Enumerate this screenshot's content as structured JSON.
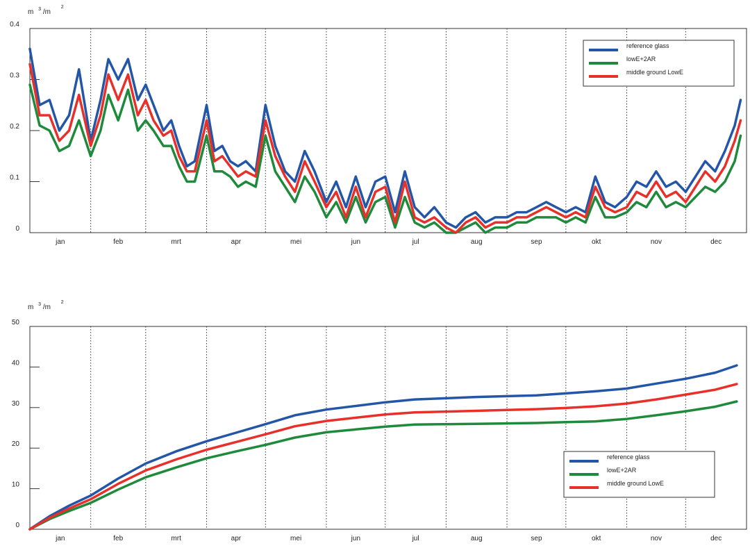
{
  "colors": {
    "reference_glass": "#2356a6",
    "lowE_2AR": "#1f8a3c",
    "middle_ground": "#e8302a",
    "axis": "#333333",
    "grid": "#333333"
  },
  "chart_data": [
    {
      "type": "line",
      "unit_base": "m",
      "unit_sup1": "3",
      "unit_mid": "/m",
      "unit_sup2": "2",
      "ylim": [
        0,
        0.4
      ],
      "yticks": [
        {
          "value": 0,
          "label": "0"
        },
        {
          "value": 0.1,
          "label": "0.1"
        },
        {
          "value": 0.2,
          "label": "0.2"
        },
        {
          "value": 0.3,
          "label": "0.3"
        },
        {
          "value": 0.4,
          "label": "0.4"
        }
      ],
      "xlim": [
        0,
        365
      ],
      "months": [
        "jan",
        "feb",
        "mrt",
        "apr",
        "mei",
        "jun",
        "jul",
        "aug",
        "sep",
        "okt",
        "nov",
        "dec"
      ],
      "month_boundaries": [
        31,
        59,
        90,
        120,
        151,
        181,
        212,
        243,
        273,
        304,
        334
      ],
      "grid": "vertical dotted at month boundaries",
      "legend_position": "top-right",
      "series": [
        {
          "name": "reference glass",
          "color_key": "reference_glass",
          "x": [
            0,
            5,
            10,
            15,
            20,
            25,
            31,
            36,
            40,
            45,
            50,
            55,
            59,
            63,
            68,
            72,
            76,
            80,
            84,
            90,
            94,
            98,
            102,
            106,
            110,
            115,
            120,
            125,
            130,
            135,
            140,
            145,
            151,
            156,
            161,
            166,
            171,
            176,
            181,
            186,
            191,
            196,
            201,
            206,
            212,
            217,
            222,
            227,
            232,
            237,
            243,
            248,
            253,
            258,
            263,
            268,
            273,
            278,
            283,
            288,
            293,
            298,
            304,
            309,
            314,
            319,
            324,
            329,
            334,
            339,
            344,
            349,
            354,
            359,
            362
          ],
          "values": [
            0.36,
            0.25,
            0.26,
            0.2,
            0.23,
            0.32,
            0.18,
            0.26,
            0.34,
            0.3,
            0.34,
            0.26,
            0.29,
            0.25,
            0.2,
            0.22,
            0.17,
            0.13,
            0.14,
            0.25,
            0.16,
            0.17,
            0.14,
            0.13,
            0.14,
            0.12,
            0.25,
            0.17,
            0.12,
            0.1,
            0.16,
            0.12,
            0.06,
            0.1,
            0.05,
            0.11,
            0.05,
            0.1,
            0.11,
            0.04,
            0.12,
            0.05,
            0.03,
            0.05,
            0.02,
            0.01,
            0.03,
            0.04,
            0.02,
            0.03,
            0.03,
            0.04,
            0.04,
            0.05,
            0.06,
            0.05,
            0.04,
            0.05,
            0.04,
            0.11,
            0.06,
            0.05,
            0.07,
            0.1,
            0.09,
            0.12,
            0.09,
            0.1,
            0.08,
            0.11,
            0.14,
            0.12,
            0.16,
            0.21,
            0.26
          ]
        },
        {
          "name": "lowE+2AR",
          "color_key": "lowE_2AR",
          "x": [
            0,
            5,
            10,
            15,
            20,
            25,
            31,
            36,
            40,
            45,
            50,
            55,
            59,
            63,
            68,
            72,
            76,
            80,
            84,
            90,
            94,
            98,
            102,
            106,
            110,
            115,
            120,
            125,
            130,
            135,
            140,
            145,
            151,
            156,
            161,
            166,
            171,
            176,
            181,
            186,
            191,
            196,
            201,
            206,
            212,
            217,
            222,
            227,
            232,
            237,
            243,
            248,
            253,
            258,
            263,
            268,
            273,
            278,
            283,
            288,
            293,
            298,
            304,
            309,
            314,
            319,
            324,
            329,
            334,
            339,
            344,
            349,
            354,
            359,
            362
          ],
          "values": [
            0.29,
            0.21,
            0.2,
            0.16,
            0.17,
            0.22,
            0.15,
            0.2,
            0.27,
            0.22,
            0.28,
            0.2,
            0.22,
            0.2,
            0.17,
            0.17,
            0.13,
            0.1,
            0.1,
            0.19,
            0.12,
            0.12,
            0.11,
            0.09,
            0.1,
            0.09,
            0.19,
            0.12,
            0.09,
            0.06,
            0.11,
            0.08,
            0.03,
            0.06,
            0.02,
            0.07,
            0.02,
            0.06,
            0.07,
            0.01,
            0.07,
            0.02,
            0.01,
            0.02,
            0.0,
            0.0,
            0.01,
            0.02,
            0.0,
            0.01,
            0.01,
            0.02,
            0.02,
            0.03,
            0.03,
            0.03,
            0.02,
            0.03,
            0.02,
            0.07,
            0.03,
            0.03,
            0.04,
            0.06,
            0.05,
            0.08,
            0.05,
            0.06,
            0.05,
            0.07,
            0.09,
            0.08,
            0.1,
            0.14,
            0.19
          ]
        },
        {
          "name": "middle ground LowE",
          "color_key": "middle_ground",
          "x": [
            0,
            5,
            10,
            15,
            20,
            25,
            31,
            36,
            40,
            45,
            50,
            55,
            59,
            63,
            68,
            72,
            76,
            80,
            84,
            90,
            94,
            98,
            102,
            106,
            110,
            115,
            120,
            125,
            130,
            135,
            140,
            145,
            151,
            156,
            161,
            166,
            171,
            176,
            181,
            186,
            191,
            196,
            201,
            206,
            212,
            217,
            222,
            227,
            232,
            237,
            243,
            248,
            253,
            258,
            263,
            268,
            273,
            278,
            283,
            288,
            293,
            298,
            304,
            309,
            314,
            319,
            324,
            329,
            334,
            339,
            344,
            349,
            354,
            359,
            362
          ],
          "values": [
            0.33,
            0.23,
            0.23,
            0.18,
            0.2,
            0.27,
            0.17,
            0.23,
            0.31,
            0.26,
            0.31,
            0.23,
            0.26,
            0.22,
            0.19,
            0.2,
            0.15,
            0.12,
            0.12,
            0.22,
            0.14,
            0.15,
            0.13,
            0.11,
            0.12,
            0.11,
            0.22,
            0.15,
            0.11,
            0.08,
            0.14,
            0.1,
            0.05,
            0.08,
            0.03,
            0.09,
            0.03,
            0.08,
            0.09,
            0.02,
            0.1,
            0.03,
            0.02,
            0.03,
            0.01,
            0.0,
            0.02,
            0.03,
            0.01,
            0.02,
            0.02,
            0.03,
            0.03,
            0.04,
            0.05,
            0.04,
            0.03,
            0.04,
            0.03,
            0.09,
            0.05,
            0.04,
            0.05,
            0.08,
            0.07,
            0.1,
            0.07,
            0.08,
            0.06,
            0.09,
            0.12,
            0.1,
            0.13,
            0.18,
            0.22
          ]
        }
      ]
    },
    {
      "type": "line",
      "unit_base": "m",
      "unit_sup1": "3",
      "unit_mid": "/m",
      "unit_sup2": "2",
      "ylim": [
        0,
        50
      ],
      "yticks": [
        {
          "value": 0,
          "label": "0"
        },
        {
          "value": 10,
          "label": "10"
        },
        {
          "value": 20,
          "label": "20"
        },
        {
          "value": 30,
          "label": "30"
        },
        {
          "value": 40,
          "label": "40"
        },
        {
          "value": 50,
          "label": "50"
        }
      ],
      "xlim": [
        0,
        365
      ],
      "months": [
        "jan",
        "feb",
        "mrt",
        "apr",
        "mei",
        "jun",
        "jul",
        "aug",
        "sep",
        "okt",
        "nov",
        "dec"
      ],
      "month_boundaries": [
        31,
        59,
        90,
        120,
        151,
        181,
        212,
        243,
        273,
        304,
        334
      ],
      "grid": "vertical dotted at month boundaries",
      "legend_position": "bottom-right",
      "series": [
        {
          "name": "reference glass",
          "color_key": "reference_glass",
          "x": [
            0,
            10,
            20,
            31,
            45,
            59,
            75,
            90,
            105,
            120,
            135,
            151,
            166,
            181,
            196,
            212,
            227,
            243,
            258,
            273,
            288,
            304,
            319,
            334,
            349,
            360
          ],
          "values": [
            0,
            3.2,
            5.8,
            8.3,
            12.5,
            16.2,
            19.3,
            21.7,
            23.8,
            25.9,
            28.1,
            29.5,
            30.4,
            31.3,
            32.0,
            32.3,
            32.6,
            32.8,
            33.0,
            33.5,
            34.0,
            34.7,
            35.9,
            37.1,
            38.6,
            40.4
          ]
        },
        {
          "name": "lowE+2AR",
          "color_key": "lowE_2AR",
          "x": [
            0,
            10,
            20,
            31,
            45,
            59,
            75,
            90,
            105,
            120,
            135,
            151,
            166,
            181,
            196,
            212,
            227,
            243,
            258,
            273,
            288,
            304,
            319,
            334,
            349,
            360
          ],
          "values": [
            0,
            2.5,
            4.5,
            6.5,
            9.8,
            12.8,
            15.3,
            17.5,
            19.2,
            20.8,
            22.6,
            23.9,
            24.6,
            25.3,
            25.8,
            25.9,
            26.0,
            26.1,
            26.2,
            26.4,
            26.6,
            27.2,
            28.1,
            29.1,
            30.2,
            31.5
          ]
        },
        {
          "name": "middle ground LowE",
          "color_key": "middle_ground",
          "x": [
            0,
            10,
            20,
            31,
            45,
            59,
            75,
            90,
            105,
            120,
            135,
            151,
            166,
            181,
            196,
            212,
            227,
            243,
            258,
            273,
            288,
            304,
            319,
            334,
            349,
            360
          ],
          "values": [
            0,
            2.8,
            5.1,
            7.4,
            11.2,
            14.5,
            17.3,
            19.6,
            21.5,
            23.4,
            25.4,
            26.7,
            27.5,
            28.3,
            28.8,
            29.0,
            29.2,
            29.4,
            29.6,
            29.9,
            30.3,
            31.0,
            32.0,
            33.2,
            34.4,
            35.8
          ]
        }
      ]
    }
  ]
}
